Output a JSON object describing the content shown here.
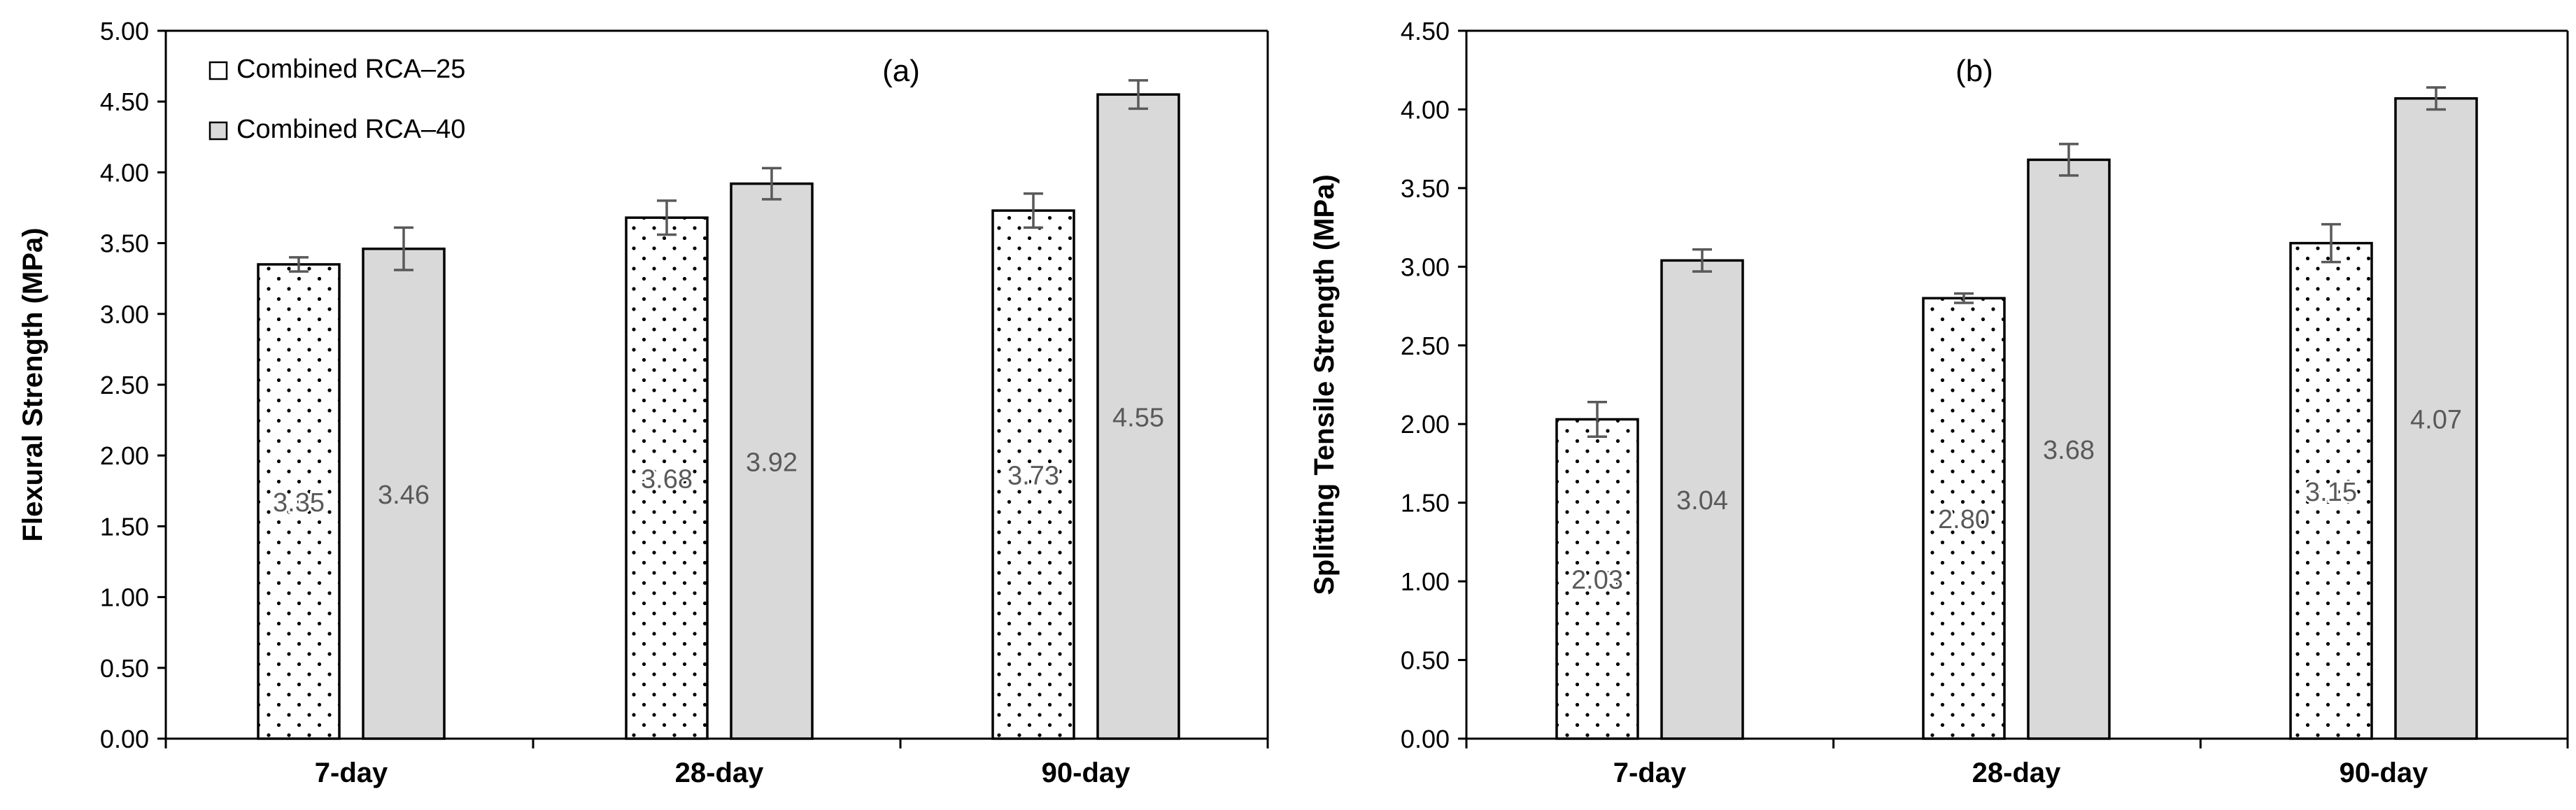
{
  "chart_data": [
    {
      "type": "bar",
      "panel_tag": "(a)",
      "categories": [
        "7-day",
        "28-day",
        "90-day"
      ],
      "series": [
        {
          "name": "Combined RCA–25",
          "values": [
            3.35,
            3.68,
            3.73
          ],
          "errors": [
            0.05,
            0.12,
            0.12
          ],
          "labels": [
            "3.35",
            "3.68",
            "3.73"
          ]
        },
        {
          "name": "Combined RCA–40",
          "values": [
            3.46,
            3.92,
            4.55
          ],
          "errors": [
            0.15,
            0.11,
            0.1
          ],
          "labels": [
            "3.46",
            "3.92",
            "4.55"
          ]
        }
      ],
      "ylabel": "Flexural Strength (MPa)",
      "xlabel": "",
      "ylim": [
        0,
        5
      ],
      "yticks": [
        "0.00",
        "0.50",
        "1.00",
        "1.50",
        "2.00",
        "2.50",
        "3.00",
        "3.50",
        "4.00",
        "4.50",
        "5.00"
      ],
      "legend": "top-left",
      "grid": false
    },
    {
      "type": "bar",
      "panel_tag": "(b)",
      "categories": [
        "7-day",
        "28-day",
        "90-day"
      ],
      "series": [
        {
          "name": "Combined RCA–25",
          "values": [
            2.03,
            2.8,
            3.15
          ],
          "errors": [
            0.11,
            0.03,
            0.12
          ],
          "labels": [
            "2.03",
            "2.80",
            "3.15"
          ]
        },
        {
          "name": "Combined RCA–40",
          "values": [
            3.04,
            3.68,
            4.07
          ],
          "errors": [
            0.07,
            0.1,
            0.07
          ],
          "labels": [
            "3.04",
            "3.68",
            "4.07"
          ]
        }
      ],
      "ylabel": "Splitting Tensile Strength (MPa)",
      "xlabel": "",
      "ylim": [
        0,
        4.5
      ],
      "yticks": [
        "0.00",
        "0.50",
        "1.00",
        "1.50",
        "2.00",
        "2.50",
        "3.00",
        "3.50",
        "4.00",
        "4.50"
      ],
      "legend": "none",
      "grid": false
    }
  ],
  "colors": {
    "series1_fill": "#ffffff",
    "series1_dots": "#000000",
    "series2_fill": "#d9d9d9",
    "bar_edge": "#000000",
    "error_bar": "#595959",
    "value_label": "#595959",
    "axis": "#000000"
  }
}
